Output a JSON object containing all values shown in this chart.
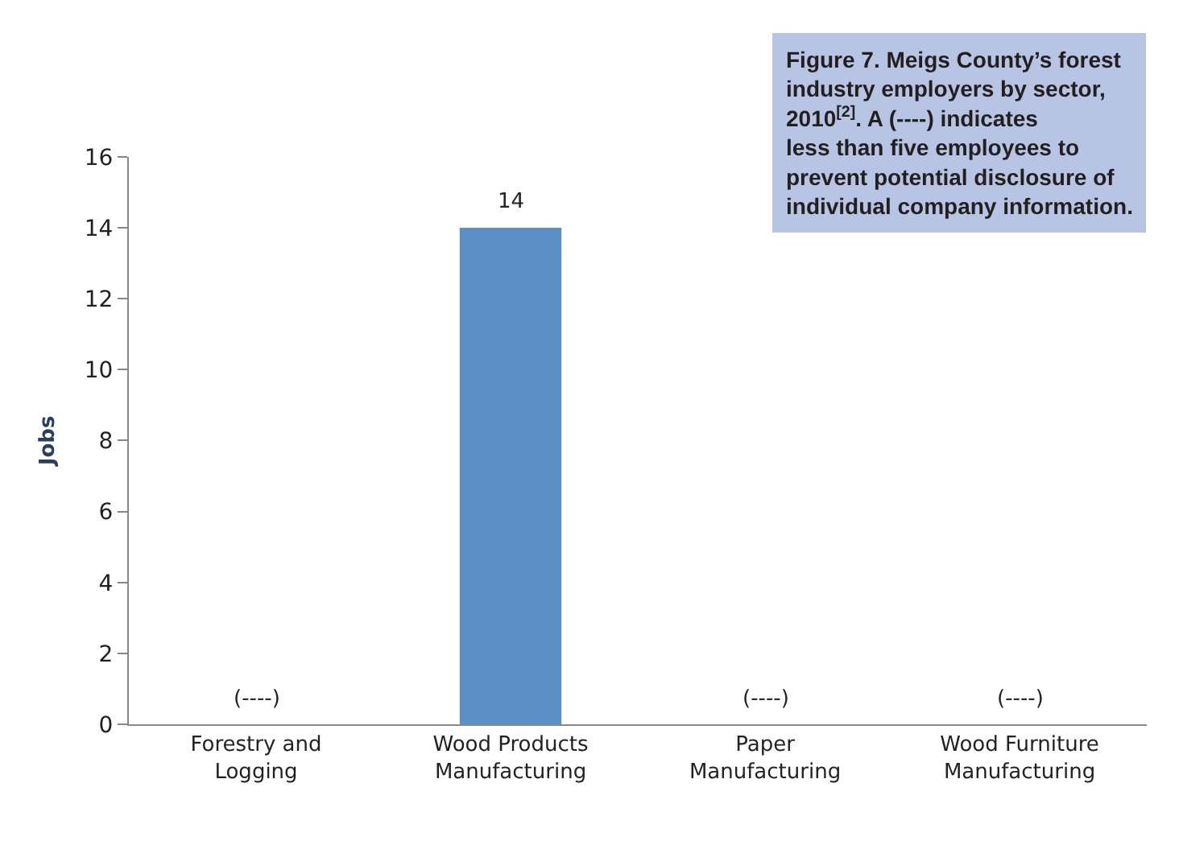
{
  "chart_data": {
    "type": "bar",
    "title": "Figure 7. Meigs County’s forest industry employers by sector, 2010$^{[2]}$. A (----) indicates less than five employees to prevent potential disclosure of individual company information.",
    "categories": [
      "Forestry and Logging",
      "Wood Products Manufacturing",
      "Paper Manufacturing",
      "Wood Furniture Manufacturing"
    ],
    "values": [
      null,
      14,
      null,
      null
    ],
    "value_labels": [
      "(----)",
      "14",
      "(----)",
      "(----)"
    ],
    "color": "#5b8fc5",
    "ylabel": "Jobs",
    "ylim": [
      0,
      16
    ],
    "yticks": [
      0,
      2,
      4,
      6,
      8,
      10,
      12,
      14,
      16
    ],
    "legend": false
  }
}
